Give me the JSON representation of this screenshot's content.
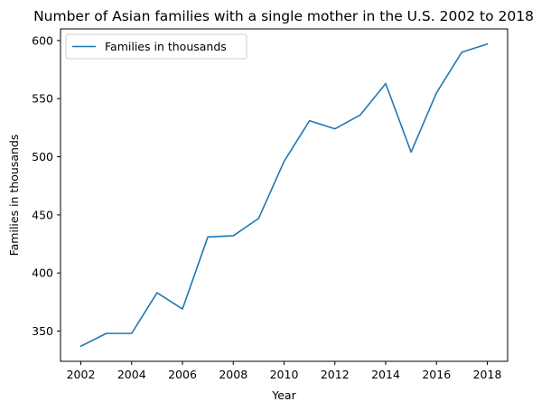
{
  "chart_data": {
    "type": "line",
    "title": "Number of Asian families with a single mother in the U.S. 2002 to 2018",
    "xlabel": "Year",
    "ylabel": "Families in thousands",
    "x": [
      2002,
      2003,
      2004,
      2005,
      2006,
      2007,
      2008,
      2009,
      2010,
      2011,
      2012,
      2013,
      2014,
      2015,
      2016,
      2017,
      2018
    ],
    "series": [
      {
        "name": "Families in thousands",
        "color": "#1f77b4",
        "values": [
          337,
          348,
          348,
          383,
          369,
          431,
          432,
          447,
          496,
          531,
          524,
          536,
          563,
          504,
          555,
          590,
          597
        ]
      }
    ],
    "xlim": [
      2001.2,
      2018.8
    ],
    "ylim": [
      324,
      610
    ],
    "xticks": [
      2002,
      2004,
      2006,
      2008,
      2010,
      2012,
      2014,
      2016,
      2018
    ],
    "yticks": [
      350,
      400,
      450,
      500,
      550,
      600
    ],
    "grid": false,
    "legend_position": "top-left"
  }
}
